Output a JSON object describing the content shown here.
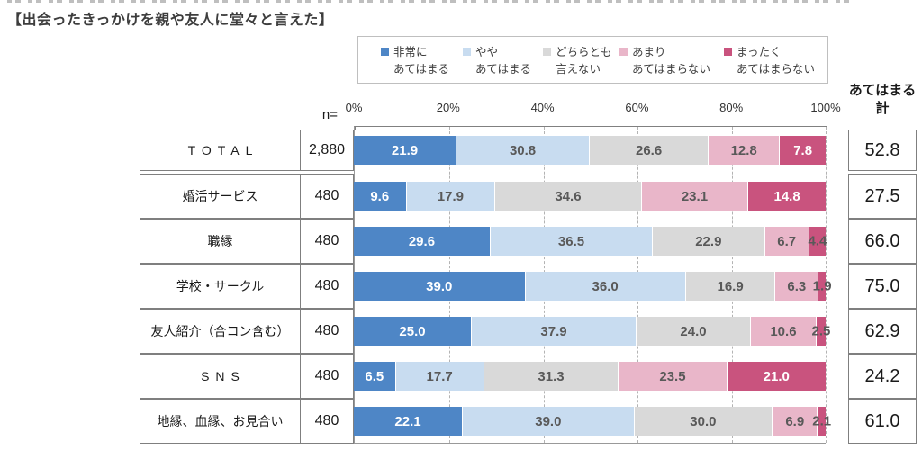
{
  "title": "【出会ったきっかけを親や友人に堂々と言えた】",
  "legend": {
    "items": [
      {
        "line1": "非常に",
        "line2": "あてはまる",
        "color": "#4e86c6"
      },
      {
        "line1": "やや",
        "line2": "あてはまる",
        "color": "#c8dcf0"
      },
      {
        "line1": "どちらとも",
        "line2": "言えない",
        "color": "#d9d9d9"
      },
      {
        "line1": "あまり",
        "line2": "あてはまらない",
        "color": "#e9b6c9"
      },
      {
        "line1": "まったく",
        "line2": "あてはまらない",
        "color": "#c9537e"
      }
    ]
  },
  "axis": {
    "n_label": "n=",
    "ticks": [
      "0%",
      "20%",
      "40%",
      "60%",
      "80%",
      "100%"
    ]
  },
  "summary_column": {
    "header_line1": "あてはまる",
    "header_line2": "計"
  },
  "colors": {
    "series": [
      "#4e86c6",
      "#c8dcf0",
      "#d9d9d9",
      "#e9b6c9",
      "#c9537e"
    ],
    "label_on_light": "#595959",
    "label_on_dark": "#ffffff",
    "cell_border": "#7f7f7f",
    "gridline": "#b3b3b3"
  },
  "chart_data": {
    "type": "bar",
    "orientation": "horizontal",
    "stacked": true,
    "unit": "%",
    "xlim": [
      0,
      100
    ],
    "x_ticks": [
      "0%",
      "20%",
      "40%",
      "60%",
      "80%",
      "100%"
    ],
    "grid": "dashed vertical lines every 20%",
    "legend_position": "top",
    "series_names": [
      "非常にあてはまる",
      "ややあてはまる",
      "どちらとも言えない",
      "あまりあてはまらない",
      "まったくあてはまらない"
    ],
    "rows": [
      {
        "label": "TOTAL",
        "n": "2,880",
        "values": [
          21.9,
          30.8,
          26.6,
          12.8,
          7.8
        ],
        "agree_total": "52.8"
      },
      {
        "label": "婚活サービス",
        "n": "480",
        "values": [
          9.6,
          17.9,
          34.6,
          23.1,
          14.8
        ],
        "agree_total": "27.5"
      },
      {
        "label": "職縁",
        "n": "480",
        "values": [
          29.6,
          36.5,
          22.9,
          6.7,
          4.4
        ],
        "agree_total": "66.0"
      },
      {
        "label": "学校・サークル",
        "n": "480",
        "values": [
          39.0,
          36.0,
          16.9,
          6.3,
          1.9
        ],
        "agree_total": "75.0"
      },
      {
        "label": "友人紹介（合コン含む）",
        "n": "480",
        "values": [
          25.0,
          37.9,
          24.0,
          10.6,
          2.5
        ],
        "agree_total": "62.9"
      },
      {
        "label": "SNS",
        "n": "480",
        "values": [
          6.5,
          17.7,
          31.3,
          23.5,
          21.0
        ],
        "agree_total": "24.2"
      },
      {
        "label": "地縁、血縁、お見合い",
        "n": "480",
        "values": [
          22.1,
          39.0,
          30.0,
          6.9,
          2.1
        ],
        "agree_total": "61.0"
      }
    ]
  }
}
